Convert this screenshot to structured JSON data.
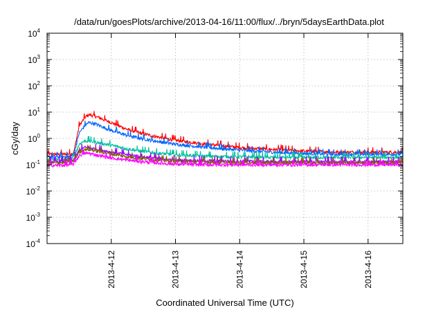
{
  "chart_data": {
    "type": "line",
    "title": "/data/run/goesPlots/archive/2013-04-16/11:00/flux/../bryn/5daysEarthData.plot",
    "xlabel": "Coordinated Universal Time (UTC)",
    "ylabel": "cGy/day",
    "yscale": "log",
    "ylim": [
      0.0001,
      10000
    ],
    "xlim": [
      "2013-04-11 00:00",
      "2013-04-16 13:00"
    ],
    "grid": true,
    "legend": "none",
    "y_ticks": [
      {
        "value": 0.0001,
        "base": "10",
        "exp": "-4"
      },
      {
        "value": 0.001,
        "base": "10",
        "exp": "-3"
      },
      {
        "value": 0.01,
        "base": "10",
        "exp": "-2"
      },
      {
        "value": 0.1,
        "base": "10",
        "exp": "-1"
      },
      {
        "value": 1,
        "base": "10",
        "exp": "0"
      },
      {
        "value": 10,
        "base": "10",
        "exp": "1"
      },
      {
        "value": 100,
        "base": "10",
        "exp": "2"
      },
      {
        "value": 1000,
        "base": "10",
        "exp": "3"
      },
      {
        "value": 10000,
        "base": "10",
        "exp": "4"
      }
    ],
    "x_ticks": [
      "2013-4-12",
      "2013-4-13",
      "2013-4-14",
      "2013-4-15",
      "2013-4-16"
    ],
    "x_tick_dates": [
      "2013-04-12",
      "2013-04-13",
      "2013-04-14",
      "2013-04-15",
      "2013-04-16"
    ],
    "series": [
      {
        "color": "#ff0000",
        "x": [
          "2013-04-11 00:00",
          "2013-04-11 06:00",
          "2013-04-11 09:00",
          "2013-04-11 10:00",
          "2013-04-11 12:00",
          "2013-04-11 14:00",
          "2013-04-11 15:30",
          "2013-04-11 18:00",
          "2013-04-12 00:00",
          "2013-04-12 06:00",
          "2013-04-12 12:00",
          "2013-04-12 18:00",
          "2013-04-13 00:00",
          "2013-04-13 12:00",
          "2013-04-14 00:00",
          "2013-04-14 12:00",
          "2013-04-15 00:00",
          "2013-04-15 12:00",
          "2013-04-16 00:00",
          "2013-04-16 13:00"
        ],
        "y": [
          0.25,
          0.25,
          0.26,
          0.3,
          3.0,
          6.0,
          8.0,
          7.0,
          4.0,
          2.2,
          1.5,
          1.1,
          0.85,
          0.6,
          0.45,
          0.38,
          0.33,
          0.3,
          0.3,
          0.3
        ]
      },
      {
        "color": "#0066ff",
        "x": [
          "2013-04-11 00:00",
          "2013-04-11 06:00",
          "2013-04-11 09:00",
          "2013-04-11 10:00",
          "2013-04-11 12:00",
          "2013-04-11 14:00",
          "2013-04-11 15:30",
          "2013-04-11 18:00",
          "2013-04-12 00:00",
          "2013-04-12 06:00",
          "2013-04-12 12:00",
          "2013-04-12 18:00",
          "2013-04-13 00:00",
          "2013-04-13 12:00",
          "2013-04-14 00:00",
          "2013-04-14 12:00",
          "2013-04-15 00:00",
          "2013-04-15 12:00",
          "2013-04-16 00:00",
          "2013-04-16 13:00"
        ],
        "y": [
          0.2,
          0.2,
          0.21,
          0.25,
          1.6,
          3.0,
          4.0,
          3.6,
          2.0,
          1.3,
          0.95,
          0.75,
          0.6,
          0.45,
          0.36,
          0.3,
          0.27,
          0.25,
          0.25,
          0.25
        ]
      },
      {
        "color": "#00c0a0",
        "x": [
          "2013-04-11 00:00",
          "2013-04-11 06:00",
          "2013-04-11 09:00",
          "2013-04-11 10:00",
          "2013-04-11 12:00",
          "2013-04-11 14:00",
          "2013-04-11 15:30",
          "2013-04-11 18:00",
          "2013-04-12 00:00",
          "2013-04-12 06:00",
          "2013-04-12 12:00",
          "2013-04-12 18:00",
          "2013-04-13 00:00",
          "2013-04-13 12:00",
          "2013-04-14 00:00",
          "2013-04-14 12:00",
          "2013-04-15 00:00",
          "2013-04-15 12:00",
          "2013-04-16 00:00",
          "2013-04-16 13:00"
        ],
        "y": [
          0.16,
          0.16,
          0.17,
          0.2,
          0.6,
          0.8,
          0.8,
          0.72,
          0.55,
          0.4,
          0.32,
          0.27,
          0.24,
          0.21,
          0.2,
          0.19,
          0.19,
          0.19,
          0.19,
          0.19
        ]
      },
      {
        "color": "#9900ff",
        "x": [
          "2013-04-11 00:00",
          "2013-04-11 06:00",
          "2013-04-11 09:00",
          "2013-04-11 10:00",
          "2013-04-11 12:00",
          "2013-04-11 14:00",
          "2013-04-11 15:30",
          "2013-04-11 18:00",
          "2013-04-12 00:00",
          "2013-04-12 06:00",
          "2013-04-12 12:00",
          "2013-04-12 18:00",
          "2013-04-13 00:00",
          "2013-04-13 12:00",
          "2013-04-14 00:00",
          "2013-04-14 12:00",
          "2013-04-15 00:00",
          "2013-04-15 12:00",
          "2013-04-16 00:00",
          "2013-04-16 13:00"
        ],
        "y": [
          0.13,
          0.13,
          0.14,
          0.16,
          0.35,
          0.45,
          0.45,
          0.4,
          0.3,
          0.24,
          0.2,
          0.17,
          0.15,
          0.14,
          0.135,
          0.13,
          0.13,
          0.13,
          0.13,
          0.13
        ]
      },
      {
        "color": "#806000",
        "x": [
          "2013-04-11 00:00",
          "2013-04-11 06:00",
          "2013-04-11 09:00",
          "2013-04-11 10:00",
          "2013-04-11 12:00",
          "2013-04-11 14:00",
          "2013-04-11 15:30",
          "2013-04-11 18:00",
          "2013-04-12 00:00",
          "2013-04-12 06:00",
          "2013-04-12 12:00",
          "2013-04-12 18:00",
          "2013-04-13 00:00",
          "2013-04-13 12:00",
          "2013-04-14 00:00",
          "2013-04-14 12:00",
          "2013-04-15 00:00",
          "2013-04-15 12:00",
          "2013-04-16 00:00",
          "2013-04-16 13:00"
        ],
        "y": [
          0.12,
          0.12,
          0.125,
          0.14,
          0.3,
          0.38,
          0.38,
          0.34,
          0.26,
          0.2,
          0.17,
          0.15,
          0.135,
          0.125,
          0.12,
          0.12,
          0.12,
          0.12,
          0.12,
          0.12
        ]
      },
      {
        "color": "#ff00ff",
        "x": [
          "2013-04-11 00:00",
          "2013-04-11 06:00",
          "2013-04-11 09:00",
          "2013-04-11 10:00",
          "2013-04-11 12:00",
          "2013-04-11 14:00",
          "2013-04-11 15:30",
          "2013-04-11 18:00",
          "2013-04-12 00:00",
          "2013-04-12 06:00",
          "2013-04-12 12:00",
          "2013-04-12 18:00",
          "2013-04-13 00:00",
          "2013-04-13 12:00",
          "2013-04-14 00:00",
          "2013-04-14 12:00",
          "2013-04-15 00:00",
          "2013-04-15 12:00",
          "2013-04-16 00:00",
          "2013-04-16 13:00"
        ],
        "y": [
          0.095,
          0.095,
          0.1,
          0.11,
          0.22,
          0.27,
          0.27,
          0.24,
          0.18,
          0.15,
          0.13,
          0.115,
          0.105,
          0.1,
          0.1,
          0.1,
          0.1,
          0.1,
          0.1,
          0.1
        ]
      }
    ]
  }
}
